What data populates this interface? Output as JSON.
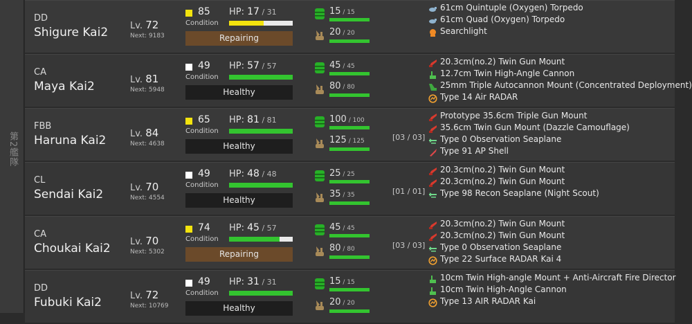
{
  "fleet_label": "第2艦隊",
  "labels": {
    "lv": "Lv.",
    "next": "Next:",
    "condition": "Condition",
    "hp": "HP:",
    "sep": " / "
  },
  "colors": {
    "cond_sparkled": "#f3e30e",
    "cond_normal": "#ffffff",
    "hp_full": "#33c42f",
    "hp_damaged": "#f3e30e",
    "healthy_bg": "#1e1e1e",
    "repair_bg": "#6b4a2a"
  },
  "ships": [
    {
      "type": "DD",
      "name": "Shigure Kai2",
      "level": "72",
      "next": "9183",
      "condition": "85",
      "cond_color": "#f3e30e",
      "hp_cur": "17",
      "hp_max": "31",
      "hp_fill": 0.548,
      "hp_color": "#f3e30e",
      "status": "Repairing",
      "status_kind": "repair",
      "fuel_cur": "15",
      "fuel_max": "15",
      "ammo_cur": "20",
      "ammo_max": "20",
      "slots": "",
      "equips": [
        {
          "icon": "torpedo-icon",
          "name": "61cm Quintuple (Oxygen) Torpedo"
        },
        {
          "icon": "torpedo-icon",
          "name": "61cm Quad (Oxygen) Torpedo"
        },
        {
          "icon": "searchlight-icon",
          "name": "Searchlight"
        }
      ]
    },
    {
      "type": "CA",
      "name": "Maya Kai2",
      "level": "81",
      "next": "5948",
      "condition": "49",
      "cond_color": "#ffffff",
      "hp_cur": "57",
      "hp_max": "57",
      "hp_fill": 1.0,
      "hp_color": "#33c42f",
      "status": "Healthy",
      "status_kind": "healthy",
      "fuel_cur": "45",
      "fuel_max": "45",
      "ammo_cur": "80",
      "ammo_max": "80",
      "slots": "",
      "equips": [
        {
          "icon": "main-gun-icon",
          "name": "20.3cm(no.2) Twin Gun Mount"
        },
        {
          "icon": "aa-gun-icon",
          "name": "12.7cm Twin High-Angle Cannon"
        },
        {
          "icon": "aa-machine-gun-icon",
          "name": "25mm Triple Autocannon Mount (Concentrated Deployment)"
        },
        {
          "icon": "radar-icon",
          "name": "Type 14 Air RADAR"
        }
      ]
    },
    {
      "type": "FBB",
      "name": "Haruna Kai2",
      "level": "84",
      "next": "4638",
      "condition": "65",
      "cond_color": "#f3e30e",
      "hp_cur": "81",
      "hp_max": "81",
      "hp_fill": 1.0,
      "hp_color": "#33c42f",
      "status": "Healthy",
      "status_kind": "healthy",
      "fuel_cur": "100",
      "fuel_max": "100",
      "ammo_cur": "125",
      "ammo_max": "125",
      "slots": "[03 / 03]",
      "equips": [
        {
          "icon": "main-gun-icon",
          "name": "Prototype 35.6cm Triple Gun Mount"
        },
        {
          "icon": "main-gun-icon",
          "name": "35.6cm Twin Gun Mount (Dazzle Camouflage)"
        },
        {
          "icon": "seaplane-icon",
          "name": "Type 0 Observation Seaplane"
        },
        {
          "icon": "ap-shell-icon",
          "name": "Type 91 AP Shell"
        }
      ]
    },
    {
      "type": "CL",
      "name": "Sendai Kai2",
      "level": "70",
      "next": "4554",
      "condition": "49",
      "cond_color": "#ffffff",
      "hp_cur": "48",
      "hp_max": "48",
      "hp_fill": 1.0,
      "hp_color": "#33c42f",
      "status": "Healthy",
      "status_kind": "healthy",
      "fuel_cur": "25",
      "fuel_max": "25",
      "ammo_cur": "35",
      "ammo_max": "35",
      "slots": "[01 / 01]",
      "equips": [
        {
          "icon": "main-gun-icon",
          "name": "20.3cm(no.2) Twin Gun Mount"
        },
        {
          "icon": "main-gun-icon",
          "name": "20.3cm(no.2) Twin Gun Mount"
        },
        {
          "icon": "seaplane-icon",
          "name": "Type 98 Recon Seaplane (Night Scout)"
        }
      ]
    },
    {
      "type": "CA",
      "name": "Choukai Kai2",
      "level": "70",
      "next": "5302",
      "condition": "74",
      "cond_color": "#f3e30e",
      "hp_cur": "45",
      "hp_max": "57",
      "hp_fill": 0.789,
      "hp_color": "#33c42f",
      "status": "Repairing",
      "status_kind": "repair",
      "fuel_cur": "45",
      "fuel_max": "45",
      "ammo_cur": "80",
      "ammo_max": "80",
      "slots": "[03 / 03]",
      "equips": [
        {
          "icon": "main-gun-icon",
          "name": "20.3cm(no.2) Twin Gun Mount"
        },
        {
          "icon": "main-gun-icon",
          "name": "20.3cm(no.2) Twin Gun Mount"
        },
        {
          "icon": "seaplane-icon",
          "name": "Type 0 Observation Seaplane"
        },
        {
          "icon": "radar-icon",
          "name": "Type 22 Surface RADAR Kai 4"
        }
      ]
    },
    {
      "type": "DD",
      "name": "Fubuki Kai2",
      "level": "72",
      "next": "10769",
      "condition": "49",
      "cond_color": "#ffffff",
      "hp_cur": "31",
      "hp_max": "31",
      "hp_fill": 1.0,
      "hp_color": "#33c42f",
      "status": "Healthy",
      "status_kind": "healthy",
      "fuel_cur": "15",
      "fuel_max": "15",
      "ammo_cur": "20",
      "ammo_max": "20",
      "slots": "",
      "equips": [
        {
          "icon": "aa-gun-icon",
          "name": "10cm Twin High-angle Mount + Anti-Aircraft Fire Director"
        },
        {
          "icon": "aa-gun-icon",
          "name": "10cm Twin High-Angle Cannon"
        },
        {
          "icon": "radar-icon",
          "name": "Type 13 AIR RADAR Kai"
        }
      ]
    }
  ]
}
